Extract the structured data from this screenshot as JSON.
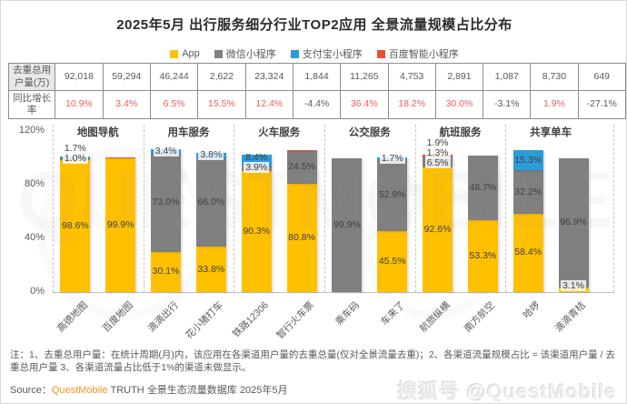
{
  "title": "2025年5月 出行服务细分行业TOP2应用 全景流量规模占比分布",
  "chart_data": {
    "type": "bar",
    "stacked": true,
    "title": "2025年5月 出行服务细分行业TOP2应用 全景流量规模占比分布",
    "ylabel": "",
    "xlabel": "",
    "ylim": [
      0,
      120
    ],
    "yticks_pct": [
      120,
      80,
      40,
      0
    ],
    "grid": false,
    "legend_position": "top",
    "min_label_pct": 1,
    "groups": [
      {
        "label": "地图导航",
        "span": [
          0,
          1
        ]
      },
      {
        "label": "用车服务",
        "span": [
          2,
          3
        ]
      },
      {
        "label": "火车服务",
        "span": [
          4,
          5
        ]
      },
      {
        "label": "公交服务",
        "span": [
          6,
          7
        ]
      },
      {
        "label": "航班服务",
        "span": [
          8,
          9
        ]
      },
      {
        "label": "共享单车",
        "span": [
          10,
          11
        ]
      }
    ],
    "categories": [
      "高德地图",
      "百度地图",
      "滴滴出行",
      "花小猪打车",
      "铁路12306",
      "智行火车票",
      "乘车码",
      "车来了",
      "航旅纵横",
      "南方航空",
      "哈啰",
      "滴滴青桔"
    ],
    "series": [
      {
        "key": "app",
        "name": "App",
        "color": "#FFC000",
        "values": [
          98.6,
          99.9,
          30.1,
          33.8,
          90.3,
          80.8,
          null,
          45.5,
          92.6,
          53.3,
          58.4,
          3.1
        ]
      },
      {
        "key": "wechat-mini",
        "name": "微信小程序",
        "color": "#7F7F7F",
        "values": [
          1.0,
          null,
          73.0,
          66.0,
          3.9,
          24.5,
          99.9,
          52.9,
          6.5,
          48.7,
          32.2,
          96.9
        ]
      },
      {
        "key": "alipay-mini",
        "name": "支付宝小程序",
        "color": "#2B9CD8",
        "values": [
          1.7,
          null,
          3.4,
          3.8,
          8.4,
          null,
          null,
          1.7,
          1.3,
          null,
          15.3,
          null
        ]
      },
      {
        "key": "baidu-mini",
        "name": "百度智能小程序",
        "color": "#E6502E",
        "values": [
          null,
          0.5,
          null,
          null,
          null,
          0.5,
          null,
          null,
          1.9,
          null,
          null,
          null
        ]
      }
    ],
    "table": {
      "rows": [
        {
          "label": "去重总用户量(万)",
          "values": [
            "92,018",
            "59,294",
            "46,244",
            "2,622",
            "23,324",
            "1,844",
            "11,265",
            "4,753",
            "2,891",
            "1,087",
            "8,730",
            "649"
          ]
        },
        {
          "label": "同比增长率",
          "values": [
            "10.9%",
            "3.4%",
            "6.5%",
            "15.5%",
            "12.4%",
            "-4.4%",
            "36.4%",
            "18.2%",
            "30.0%",
            "-3.1%",
            "1.9%",
            "-27.1%"
          ]
        }
      ]
    }
  },
  "colors": {
    "positive_growth": "#f95a58",
    "negative_growth": "#595959",
    "brand_orange": "#f7941d"
  },
  "note": "注：1、去重总用户量：在统计周期(月)内，该应用在各渠道用户量的去重总量(仅对全景流量去重)；2、各渠道流量规模占比 = 该渠道用户量 / 去重总用户量 3、各渠道流量占比低于1%的渠道未做显示。",
  "source": {
    "label": "Source：",
    "brand": "QuestMobile",
    "rest": " TRUTH 全景生态流量数据库 2025年5月"
  },
  "watermark": "搜狐号 @QuestMobile",
  "background_watermark": "QUESTMOBILE"
}
